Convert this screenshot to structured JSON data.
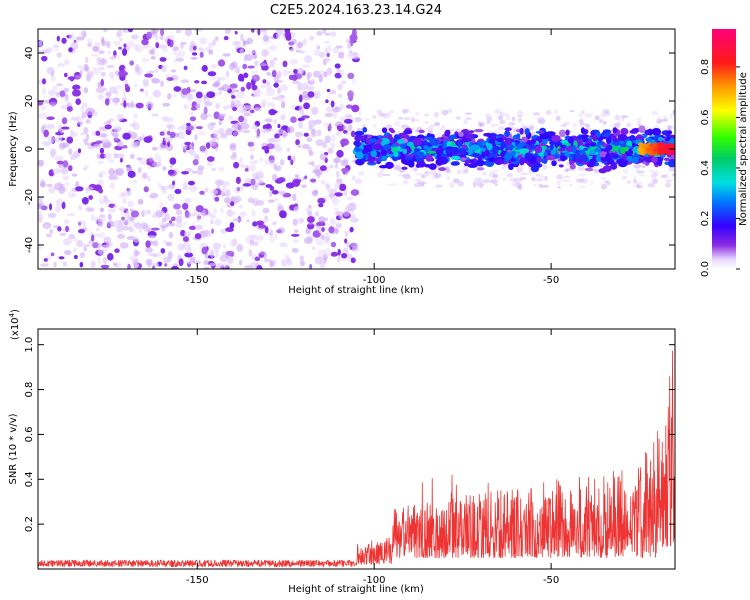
{
  "title": "C2E5.2024.163.23.14.G24",
  "chart_data": [
    {
      "type": "heatmap",
      "xlabel": "Height of straight line (km)",
      "ylabel": "Frequency (Hz)",
      "xlim": [
        -195,
        -15
      ],
      "ylim": [
        -50,
        50
      ],
      "x_ticks": [
        -150,
        -100,
        -50
      ],
      "x_tick_labels": [
        "-150",
        "-100",
        "-50"
      ],
      "y_ticks": [
        -40,
        -20,
        0,
        20,
        40
      ],
      "y_tick_labels": [
        "-40",
        "-20",
        "0",
        "20",
        "40"
      ],
      "colorbar": {
        "label": "Normalized spectral amplitude",
        "range": [
          0,
          0.95
        ],
        "ticks": [
          0.0,
          0.2,
          0.4,
          0.6,
          0.8
        ],
        "tick_labels": [
          "0.0",
          "0.2",
          "0.4",
          "0.6",
          "0.8"
        ],
        "colormap": "rainbow (purple-blue-cyan-green-yellow-red-magenta)"
      },
      "description_regions": [
        {
          "x_range": [
            -195,
            -105
          ],
          "y_range": [
            -50,
            50
          ],
          "amplitude": [
            0.0,
            0.08
          ]
        },
        {
          "x_range": [
            -105,
            -15
          ],
          "y_center": 0,
          "y_halfwidth": [
            5,
            10
          ],
          "amplitude": [
            0.05,
            0.5
          ]
        },
        {
          "x_range": [
            -25,
            -15
          ],
          "y_center": 0,
          "y_halfwidth": 2,
          "amplitude": [
            0.7,
            0.95
          ]
        }
      ]
    },
    {
      "type": "line",
      "xlabel": "Height of straight line (km)",
      "ylabel": "SNR (10 * v/v)",
      "y_multiplier_label": "(x10",
      "y_multiplier_exp": "4",
      "xlim": [
        -195,
        -15
      ],
      "ylim": [
        0,
        1.07
      ],
      "x_ticks": [
        -150,
        -100,
        -50
      ],
      "x_tick_labels": [
        "-150",
        "-100",
        "-50"
      ],
      "y_ticks": [
        0.2,
        0.4,
        0.6,
        0.8,
        1.0
      ],
      "y_tick_labels": [
        "0.2",
        "0.4",
        "0.6",
        "0.8",
        "1.0"
      ],
      "series": [
        {
          "color": "#ee3333",
          "segments": [
            {
              "x_range": [
                -195,
                -105
              ],
              "y_range": [
                0.01,
                0.04
              ]
            },
            {
              "x_range": [
                -105,
                -95
              ],
              "y_range": [
                0.02,
                0.15
              ]
            },
            {
              "x_range": [
                -95,
                -30
              ],
              "y_range": [
                0.05,
                0.45
              ]
            },
            {
              "x_range": [
                -30,
                -20
              ],
              "y_range": [
                0.05,
                0.6
              ]
            },
            {
              "x_range": [
                -20,
                -15
              ],
              "y_range": [
                0.1,
                1.07
              ]
            }
          ]
        }
      ]
    }
  ]
}
